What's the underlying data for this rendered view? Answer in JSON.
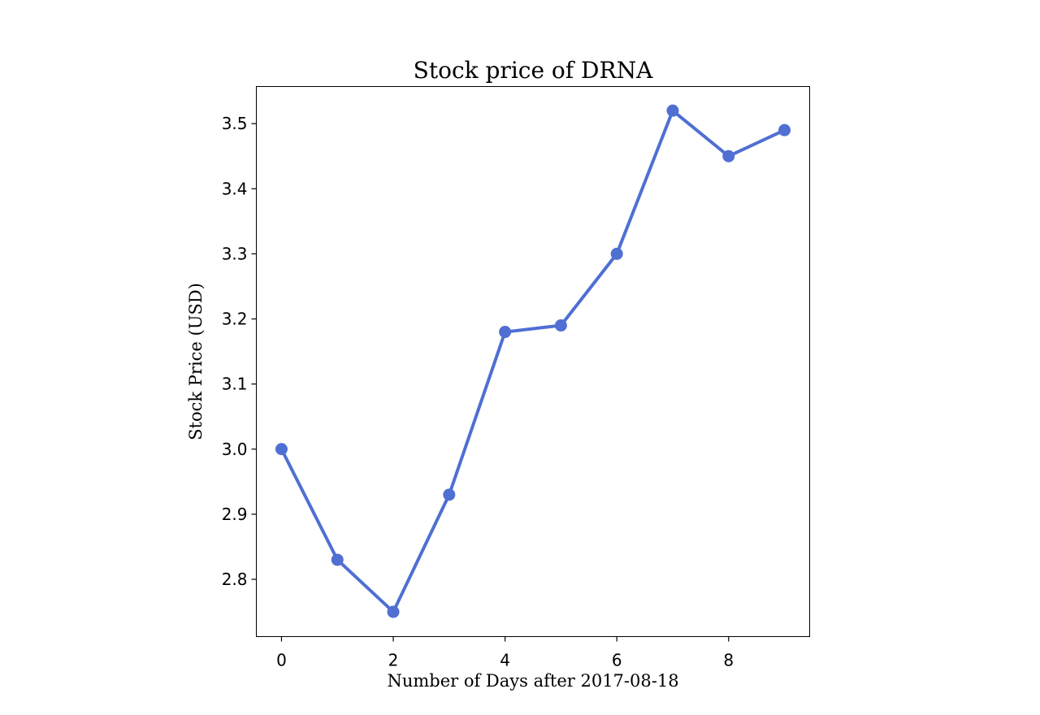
{
  "chart_data": {
    "type": "line",
    "title": "Stock price of DRNA",
    "xlabel": "Number of Days after 2017-08-18",
    "ylabel": "Stock Price (USD)",
    "x": [
      0,
      1,
      2,
      3,
      4,
      5,
      6,
      7,
      8,
      9
    ],
    "series": [
      {
        "values": [
          3.0,
          2.83,
          2.75,
          2.93,
          3.18,
          3.19,
          3.3,
          3.52,
          3.45,
          3.49
        ],
        "color": "#4f6fd3",
        "marker": "circle"
      }
    ],
    "xlim": [
      -0.45,
      9.45
    ],
    "ylim": [
      2.712,
      3.557
    ],
    "xticks": [
      0,
      2,
      4,
      6,
      8
    ],
    "yticks": [
      2.8,
      2.9,
      3.0,
      3.1,
      3.2,
      3.3,
      3.4,
      3.5
    ],
    "grid": false,
    "legend": "none"
  }
}
